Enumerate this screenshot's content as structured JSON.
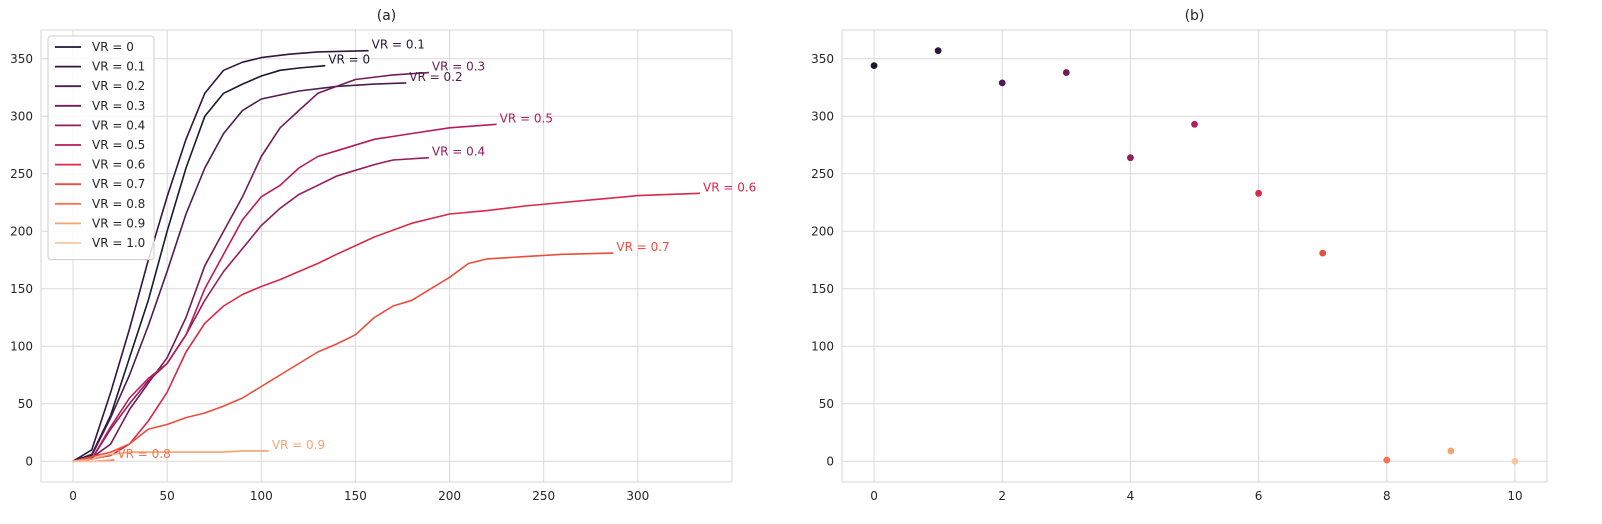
{
  "chart_data": [
    {
      "type": "line",
      "title": "(a)",
      "xlabel": "",
      "ylabel": "",
      "xlim": [
        -17,
        350
      ],
      "ylim": [
        -18,
        375
      ],
      "xticks": [
        0,
        50,
        100,
        150,
        200,
        250,
        300
      ],
      "yticks": [
        0,
        50,
        100,
        150,
        200,
        250,
        300,
        350
      ],
      "grid": true,
      "legend_position": "top-left",
      "legend": [
        "VR = 0",
        "VR = 0.1",
        "VR = 0.2",
        "VR = 0.3",
        "VR = 0.4",
        "VR = 0.5",
        "VR = 0.6",
        "VR = 0.7",
        "VR = 0.8",
        "VR = 0.9",
        "VR = 1.0"
      ],
      "colors": [
        "#1b1830",
        "#2e1640",
        "#4e1b51",
        "#6f1d5a",
        "#931d5d",
        "#b71c58",
        "#d8294a",
        "#ea4e3c",
        "#f37650",
        "#f6a271",
        "#f8c6a3"
      ],
      "series": [
        {
          "name": "VR = 0",
          "x": [
            0,
            10,
            20,
            30,
            40,
            50,
            60,
            70,
            80,
            90,
            100,
            110,
            120,
            134
          ],
          "y": [
            0,
            6,
            40,
            90,
            140,
            200,
            255,
            300,
            320,
            328,
            335,
            340,
            342,
            344
          ]
        },
        {
          "name": "VR = 0.1",
          "x": [
            0,
            10,
            20,
            30,
            40,
            50,
            60,
            70,
            80,
            90,
            100,
            115,
            130,
            157
          ],
          "y": [
            0,
            10,
            60,
            115,
            175,
            230,
            280,
            320,
            340,
            347,
            351,
            354,
            356,
            357
          ]
        },
        {
          "name": "VR = 0.2",
          "x": [
            0,
            10,
            20,
            30,
            40,
            50,
            60,
            70,
            80,
            90,
            100,
            120,
            140,
            160,
            177
          ],
          "y": [
            0,
            5,
            38,
            75,
            118,
            165,
            215,
            255,
            285,
            305,
            315,
            322,
            326,
            328,
            329
          ]
        },
        {
          "name": "VR = 0.3",
          "x": [
            0,
            10,
            20,
            30,
            40,
            50,
            60,
            70,
            80,
            90,
            100,
            110,
            120,
            130,
            150,
            170,
            189
          ],
          "y": [
            0,
            3,
            15,
            45,
            68,
            90,
            125,
            170,
            200,
            230,
            265,
            290,
            305,
            320,
            332,
            336,
            338
          ]
        },
        {
          "name": "VR = 0.4",
          "x": [
            0,
            10,
            20,
            30,
            40,
            50,
            60,
            70,
            80,
            90,
            100,
            110,
            120,
            130,
            140,
            150,
            160,
            170,
            189
          ],
          "y": [
            0,
            2,
            28,
            50,
            70,
            85,
            110,
            140,
            165,
            185,
            205,
            220,
            232,
            240,
            248,
            253,
            258,
            262,
            264
          ]
        },
        {
          "name": "VR = 0.5",
          "x": [
            0,
            10,
            20,
            30,
            40,
            50,
            60,
            70,
            80,
            90,
            100,
            110,
            120,
            130,
            140,
            160,
            180,
            200,
            225
          ],
          "y": [
            0,
            2,
            30,
            55,
            72,
            85,
            110,
            150,
            180,
            210,
            230,
            240,
            255,
            265,
            270,
            280,
            285,
            290,
            293
          ]
        },
        {
          "name": "VR = 0.6",
          "x": [
            0,
            10,
            20,
            30,
            40,
            50,
            60,
            70,
            80,
            90,
            100,
            110,
            120,
            130,
            140,
            160,
            180,
            200,
            220,
            240,
            260,
            280,
            300,
            333
          ],
          "y": [
            0,
            2,
            5,
            15,
            35,
            60,
            95,
            120,
            135,
            145,
            152,
            158,
            165,
            172,
            180,
            195,
            207,
            215,
            218,
            222,
            225,
            228,
            231,
            233
          ]
        },
        {
          "name": "VR = 0.7",
          "x": [
            0,
            20,
            30,
            40,
            50,
            60,
            70,
            80,
            90,
            100,
            110,
            120,
            130,
            140,
            150,
            160,
            170,
            180,
            190,
            200,
            210,
            220,
            240,
            260,
            287
          ],
          "y": [
            0,
            8,
            15,
            28,
            32,
            38,
            42,
            48,
            55,
            65,
            75,
            85,
            95,
            102,
            110,
            125,
            135,
            140,
            150,
            160,
            172,
            176,
            178,
            180,
            181
          ]
        },
        {
          "name": "VR = 0.8",
          "x": [
            0,
            10,
            22
          ],
          "y": [
            0,
            0,
            1
          ]
        },
        {
          "name": "VR = 0.9",
          "x": [
            0,
            10,
            20,
            30,
            40,
            60,
            80,
            90,
            104
          ],
          "y": [
            0,
            2,
            6,
            8,
            8,
            8,
            8,
            9,
            9
          ]
        },
        {
          "name": "VR = 1.0",
          "x": [
            0,
            10,
            20
          ],
          "y": [
            0,
            0,
            0
          ]
        }
      ],
      "end_labels": [
        {
          "text": "VR = 0",
          "x": 134,
          "y": 344,
          "series": 0
        },
        {
          "text": "VR = 0.1",
          "x": 157,
          "y": 357,
          "series": 1
        },
        {
          "text": "VR = 0.2",
          "x": 177,
          "y": 329,
          "series": 2
        },
        {
          "text": "VR = 0.3",
          "x": 189,
          "y": 338,
          "series": 3
        },
        {
          "text": "VR = 0.4",
          "x": 189,
          "y": 264,
          "series": 4
        },
        {
          "text": "VR = 0.5",
          "x": 225,
          "y": 293,
          "series": 5
        },
        {
          "text": "VR = 0.6",
          "x": 333,
          "y": 233,
          "series": 6
        },
        {
          "text": "VR = 0.7",
          "x": 287,
          "y": 181,
          "series": 7
        },
        {
          "text": "VR = 0.8",
          "x": 22,
          "y": 1,
          "series": 8
        },
        {
          "text": "VR = 0.9",
          "x": 104,
          "y": 9,
          "series": 9
        }
      ]
    },
    {
      "type": "scatter",
      "title": "(b)",
      "xlabel": "",
      "ylabel": "",
      "xlim": [
        -0.5,
        10.5
      ],
      "ylim": [
        -18,
        375
      ],
      "xticks": [
        0,
        2,
        4,
        6,
        8,
        10
      ],
      "yticks": [
        0,
        50,
        100,
        150,
        200,
        250,
        300,
        350
      ],
      "grid": true,
      "x": [
        0,
        1,
        2,
        3,
        4,
        5,
        6,
        7,
        8,
        9,
        10
      ],
      "y": [
        344,
        357,
        329,
        338,
        264,
        293,
        233,
        181,
        1,
        9,
        0
      ],
      "colors": [
        "#1b1830",
        "#2e1640",
        "#4e1b51",
        "#6f1d5a",
        "#931d5d",
        "#b71c58",
        "#d8294a",
        "#ea4e3c",
        "#f37650",
        "#f6a271",
        "#f8c6a3"
      ]
    }
  ]
}
